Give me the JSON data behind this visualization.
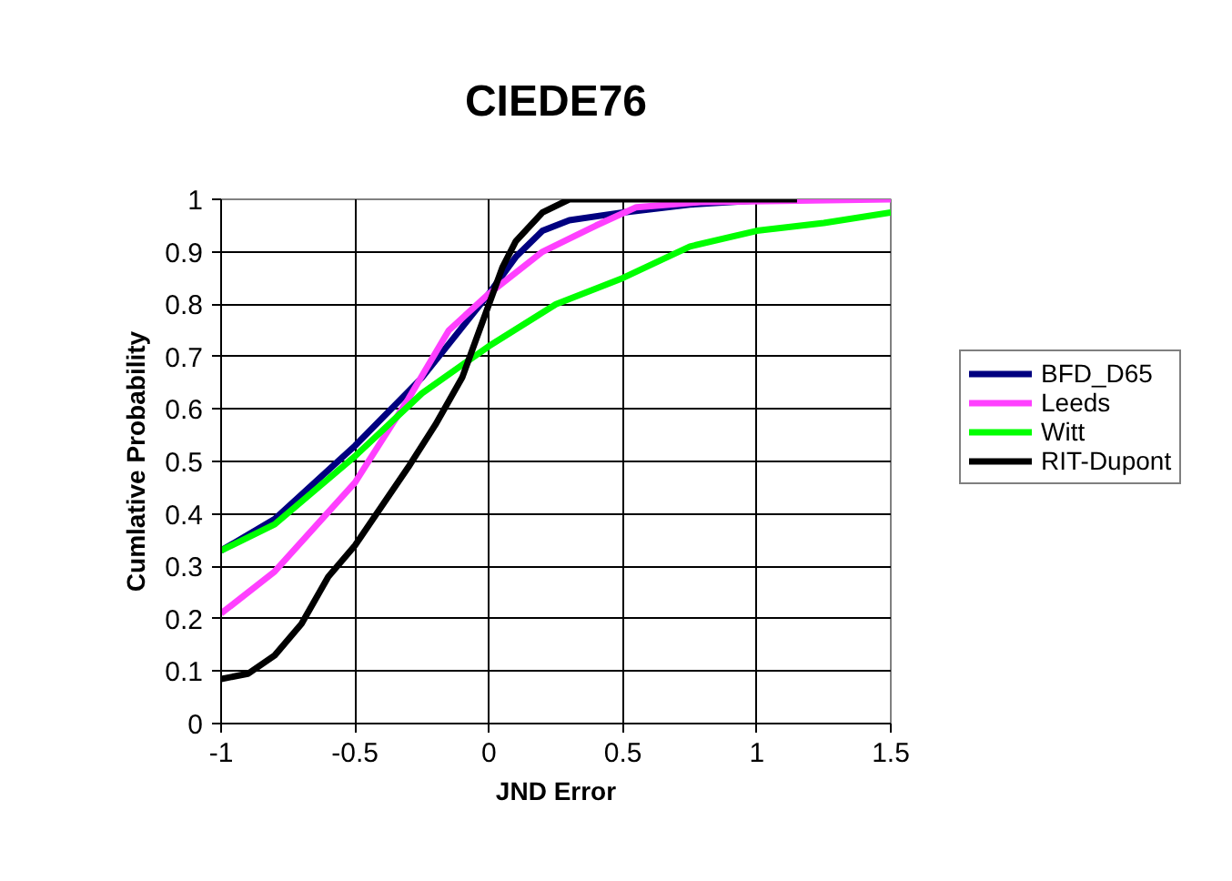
{
  "chart_data": {
    "type": "line",
    "title": "CIEDE76",
    "xlabel": "JND Error",
    "ylabel": "Cumlative Probability",
    "xlim": [
      -1,
      1.5
    ],
    "xticks": [
      -1,
      -0.5,
      0,
      0.5,
      1,
      1.5
    ],
    "ylim": [
      0,
      1
    ],
    "yticks": [
      0,
      0.1,
      0.2,
      0.3,
      0.4,
      0.5,
      0.6,
      0.7,
      0.8,
      0.9,
      1
    ],
    "grid": true,
    "legend": "right",
    "marker": "none",
    "line_style": "solid",
    "series": [
      {
        "name": "BFD_D65",
        "color": "#000080",
        "x": [
          -1,
          -0.8,
          -0.5,
          -0.25,
          0,
          0.1,
          0.2,
          0.3,
          0.5,
          0.75,
          1,
          1.15
        ],
        "values": [
          0.33,
          0.39,
          0.53,
          0.66,
          0.82,
          0.89,
          0.94,
          0.96,
          0.975,
          0.99,
          0.998,
          1.0
        ]
      },
      {
        "name": "Leeds",
        "color": "#ff40ff",
        "x": [
          -1,
          -0.8,
          -0.5,
          -0.3,
          -0.15,
          0,
          0.2,
          0.4,
          0.55,
          0.8,
          1.5
        ],
        "values": [
          0.21,
          0.29,
          0.46,
          0.62,
          0.75,
          0.82,
          0.9,
          0.95,
          0.985,
          0.995,
          1.0
        ]
      },
      {
        "name": "Witt",
        "color": "#00ff00",
        "x": [
          -1,
          -0.8,
          -0.5,
          -0.25,
          0,
          0.25,
          0.5,
          0.75,
          1,
          1.25,
          1.5
        ],
        "values": [
          0.33,
          0.38,
          0.51,
          0.63,
          0.72,
          0.8,
          0.85,
          0.91,
          0.94,
          0.955,
          0.975
        ]
      },
      {
        "name": "RIT-Dupont",
        "color": "#000000",
        "x": [
          -1,
          -0.9,
          -0.8,
          -0.7,
          -0.6,
          -0.5,
          -0.3,
          -0.2,
          -0.1,
          0,
          0.05,
          0.1,
          0.2,
          0.3,
          1.15
        ],
        "values": [
          0.085,
          0.095,
          0.13,
          0.19,
          0.28,
          0.34,
          0.49,
          0.57,
          0.66,
          0.8,
          0.87,
          0.92,
          0.975,
          1.0,
          1.0
        ]
      }
    ]
  }
}
